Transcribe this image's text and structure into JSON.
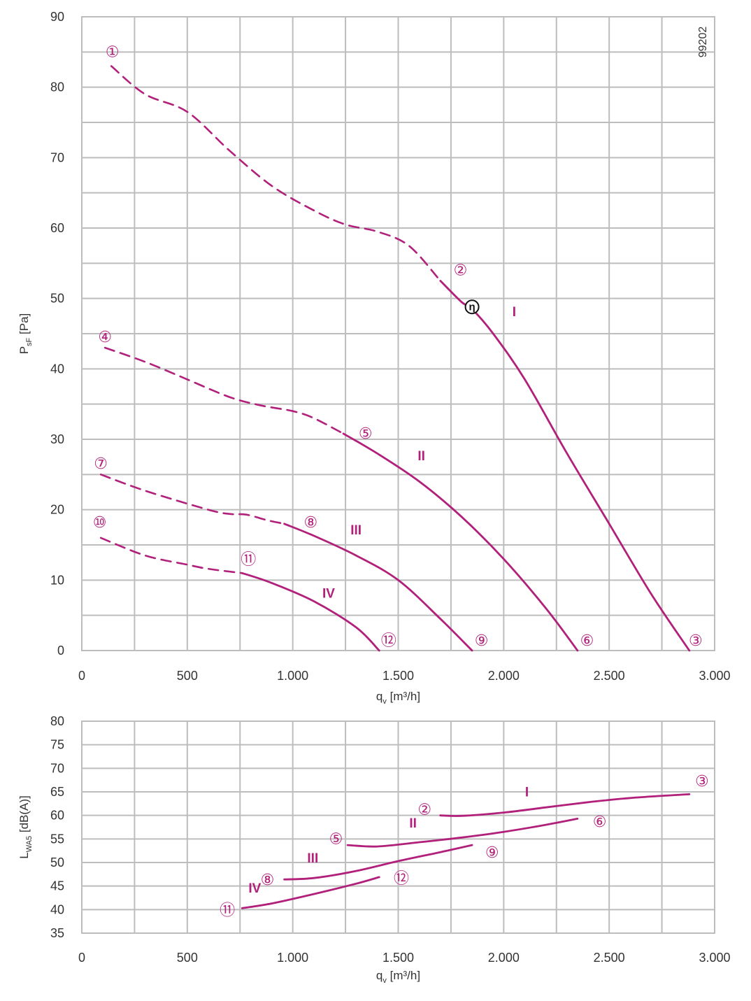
{
  "colors": {
    "curve": "#b1207a",
    "grid": "#bdbdbd",
    "text": "#333333",
    "eta": "#111111"
  },
  "doc_number": "99202",
  "chart_data": [
    {
      "id": "pressure",
      "type": "line",
      "xlabel": "q",
      "xlabel_sub": "v",
      "xlabel_unit": " [m³/h]",
      "ylabel": "P",
      "ylabel_sub": "sF",
      "ylabel_unit": " [Pa]",
      "xlim": [
        0,
        3000
      ],
      "ylim": [
        0,
        90
      ],
      "x_ticks": [
        0,
        500,
        1000,
        1500,
        2000,
        2500,
        3000
      ],
      "x_tick_labels": [
        "0",
        "500",
        "1.000",
        "1.500",
        "2.000",
        "2.500",
        "3.000"
      ],
      "y_ticks": [
        0,
        10,
        20,
        30,
        40,
        50,
        60,
        70,
        80,
        90
      ],
      "y_tick_labels": [
        "0",
        "10",
        "20",
        "30",
        "40",
        "50",
        "60",
        "70",
        "80",
        "90"
      ],
      "grid": true,
      "series": [
        {
          "name": "I",
          "dashed": [
            [
              140,
              83
            ],
            [
              300,
              79
            ],
            [
              500,
              76.5
            ],
            [
              700,
              71
            ],
            [
              900,
              66
            ],
            [
              1100,
              62.5
            ],
            [
              1250,
              60.5
            ],
            [
              1400,
              59.5
            ],
            [
              1550,
              57.5
            ],
            [
              1700,
              52.5
            ]
          ],
          "solid": [
            [
              1700,
              52.5
            ],
            [
              1800,
              49.5
            ],
            [
              1850,
              48.5
            ],
            [
              1950,
              45
            ],
            [
              2100,
              38.5
            ],
            [
              2300,
              28
            ],
            [
              2500,
              18
            ],
            [
              2700,
              8
            ],
            [
              2880,
              0
            ]
          ],
          "label": "I",
          "label_at": [
            2050,
            47.5
          ]
        },
        {
          "name": "II",
          "dashed": [
            [
              110,
              43
            ],
            [
              300,
              41
            ],
            [
              500,
              38.5
            ],
            [
              700,
              36
            ],
            [
              850,
              34.8
            ],
            [
              1000,
              34
            ],
            [
              1100,
              33
            ],
            [
              1240,
              30.8
            ]
          ],
          "solid": [
            [
              1240,
              30.8
            ],
            [
              1400,
              28
            ],
            [
              1600,
              24
            ],
            [
              1800,
              19
            ],
            [
              2000,
              13
            ],
            [
              2200,
              6
            ],
            [
              2350,
              0
            ]
          ],
          "label": "II",
          "label_at": [
            1610,
            27
          ]
        },
        {
          "name": "III",
          "dashed": [
            [
              90,
              25
            ],
            [
              300,
              22.7
            ],
            [
              600,
              20
            ],
            [
              700,
              19.4
            ],
            [
              780,
              19.3
            ],
            [
              880,
              18.5
            ],
            [
              960,
              18
            ]
          ],
          "solid": [
            [
              960,
              18
            ],
            [
              1100,
              16.3
            ],
            [
              1300,
              13.5
            ],
            [
              1500,
              10
            ],
            [
              1700,
              4.5
            ],
            [
              1850,
              0
            ]
          ],
          "label": "III",
          "label_at": [
            1300,
            16.5
          ]
        },
        {
          "name": "IV",
          "dashed": [
            [
              90,
              16
            ],
            [
              300,
              13.5
            ],
            [
              500,
              12.2
            ],
            [
              600,
              11.6
            ],
            [
              760,
              11
            ]
          ],
          "solid": [
            [
              760,
              11
            ],
            [
              900,
              9.6
            ],
            [
              1100,
              7
            ],
            [
              1300,
              3.3
            ],
            [
              1410,
              0
            ]
          ],
          "label": "IV",
          "label_at": [
            1170,
            7.5
          ]
        }
      ],
      "markers": [
        {
          "label": "①",
          "x": 145,
          "y": 85
        },
        {
          "label": "②",
          "x": 1795,
          "y": 54
        },
        {
          "label": "③",
          "x": 2910,
          "y": 1.4
        },
        {
          "label": "④",
          "x": 110,
          "y": 44.5
        },
        {
          "label": "⑤",
          "x": 1345,
          "y": 30.8
        },
        {
          "label": "⑥",
          "x": 2395,
          "y": 1.4
        },
        {
          "label": "⑦",
          "x": 90,
          "y": 26.5
        },
        {
          "label": "⑧",
          "x": 1085,
          "y": 18.2
        },
        {
          "label": "⑨",
          "x": 1895,
          "y": 1.4
        },
        {
          "label": "⑩",
          "x": 85,
          "y": 18.2
        },
        {
          "label": "⑪",
          "x": 790,
          "y": 12.9
        },
        {
          "label": "⑫",
          "x": 1455,
          "y": 1.4
        }
      ],
      "eta_marker": {
        "label": "η",
        "x": 1850,
        "y": 48.8
      }
    },
    {
      "id": "sound",
      "type": "line",
      "xlabel": "q",
      "xlabel_sub": "v",
      "xlabel_unit": " [m³/h]",
      "ylabel": "L",
      "ylabel_sub": "WA5",
      "ylabel_unit": " [dB(A)]",
      "xlim": [
        0,
        3000
      ],
      "ylim": [
        35,
        80
      ],
      "x_ticks": [
        0,
        500,
        1000,
        1500,
        2000,
        2500,
        3000
      ],
      "x_tick_labels": [
        "0",
        "500",
        "1.000",
        "1.500",
        "2.000",
        "2.500",
        "3.000"
      ],
      "y_ticks": [
        35,
        40,
        45,
        50,
        55,
        60,
        65,
        70,
        75,
        80
      ],
      "y_tick_labels": [
        "35",
        "40",
        "45",
        "50",
        "55",
        "60",
        "65",
        "70",
        "75",
        "80"
      ],
      "grid": true,
      "series": [
        {
          "name": "I",
          "solid": [
            [
              1700,
              60
            ],
            [
              1800,
              59.9
            ],
            [
              2000,
              60.6
            ],
            [
              2200,
              61.7
            ],
            [
              2400,
              62.8
            ],
            [
              2600,
              63.7
            ],
            [
              2880,
              64.5
            ]
          ],
          "label": "I",
          "label_at": [
            2110,
            64
          ]
        },
        {
          "name": "II",
          "solid": [
            [
              1260,
              53.7
            ],
            [
              1400,
              53.4
            ],
            [
              1600,
              54.3
            ],
            [
              1800,
              55.3
            ],
            [
              2000,
              56.5
            ],
            [
              2200,
              58
            ],
            [
              2350,
              59.3
            ]
          ],
          "label": "II",
          "label_at": [
            1570,
            57.4
          ]
        },
        {
          "name": "III",
          "solid": [
            [
              960,
              46.4
            ],
            [
              1100,
              46.7
            ],
            [
              1300,
              48.2
            ],
            [
              1500,
              50.3
            ],
            [
              1700,
              52.2
            ],
            [
              1850,
              53.7
            ]
          ],
          "label": "III",
          "label_at": [
            1095,
            50
          ]
        },
        {
          "name": "IV",
          "solid": [
            [
              760,
              40.3
            ],
            [
              900,
              41.3
            ],
            [
              1100,
              43.3
            ],
            [
              1300,
              45.5
            ],
            [
              1410,
              46.9
            ]
          ],
          "label": "IV",
          "label_at": [
            820,
            43.6
          ]
        }
      ],
      "markers": [
        {
          "label": "②",
          "x": 1625,
          "y": 61.2
        },
        {
          "label": "③",
          "x": 2940,
          "y": 67.2
        },
        {
          "label": "⑤",
          "x": 1205,
          "y": 55
        },
        {
          "label": "⑥",
          "x": 2455,
          "y": 58.6
        },
        {
          "label": "⑧",
          "x": 880,
          "y": 46.3
        },
        {
          "label": "⑨",
          "x": 1945,
          "y": 52.1
        },
        {
          "label": "⑪",
          "x": 690,
          "y": 39.8
        },
        {
          "label": "⑫",
          "x": 1515,
          "y": 46.6
        }
      ]
    }
  ]
}
